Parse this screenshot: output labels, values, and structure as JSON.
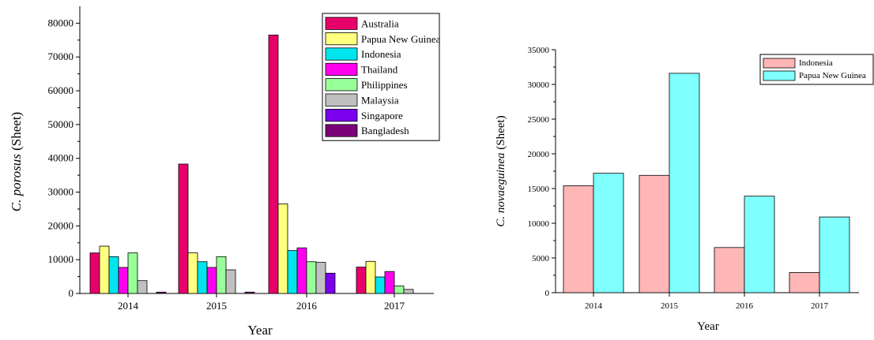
{
  "chart_data": [
    {
      "type": "bar",
      "title": "",
      "xlabel": "Year",
      "ylabel_italic": "C. porosus",
      "ylabel_rest": " (Sheet)",
      "ylim": [
        0,
        85000
      ],
      "yticks": [
        0,
        10000,
        20000,
        30000,
        40000,
        50000,
        60000,
        70000,
        80000
      ],
      "categories": [
        "2014",
        "2015",
        "2016",
        "2017"
      ],
      "legend_position": "top-right",
      "grid": false,
      "series": [
        {
          "name": "Australia",
          "color": "#e8006a",
          "values": [
            12000,
            38300,
            76500,
            7800
          ]
        },
        {
          "name": "Papua New Guinea",
          "color": "#ffff80",
          "values": [
            14000,
            12000,
            26500,
            9500
          ]
        },
        {
          "name": "Indonesia",
          "color": "#00e5ee",
          "values": [
            10900,
            9400,
            12700,
            4900
          ]
        },
        {
          "name": "Thailand",
          "color": "#ff00ee",
          "values": [
            7700,
            7700,
            13500,
            6500
          ]
        },
        {
          "name": "Philippines",
          "color": "#99ff99",
          "values": [
            12000,
            10900,
            9400,
            2200
          ]
        },
        {
          "name": "Malaysia",
          "color": "#c0c0c0",
          "values": [
            3800,
            7000,
            9200,
            1200
          ]
        },
        {
          "name": "Singapore",
          "color": "#7a00ee",
          "values": [
            0,
            0,
            6000,
            0
          ]
        },
        {
          "name": "Bangladesh",
          "color": "#7a0078",
          "values": [
            400,
            400,
            0,
            0
          ]
        }
      ]
    },
    {
      "type": "bar",
      "title": "",
      "xlabel": "Year",
      "ylabel_italic": "C. novaeguinea",
      "ylabel_rest": " (Sheet)",
      "ylim": [
        0,
        35000
      ],
      "yticks": [
        0,
        5000,
        10000,
        15000,
        20000,
        25000,
        30000,
        35000
      ],
      "categories": [
        "2014",
        "2015",
        "2016",
        "2017"
      ],
      "legend_position": "top-right",
      "grid": false,
      "series": [
        {
          "name": "Indonesia",
          "color": "#ffb6b6",
          "values": [
            15400,
            16900,
            6500,
            2900
          ]
        },
        {
          "name": "Papua New Guinea",
          "color": "#80ffff",
          "values": [
            17200,
            31600,
            13900,
            10900
          ]
        }
      ]
    }
  ]
}
